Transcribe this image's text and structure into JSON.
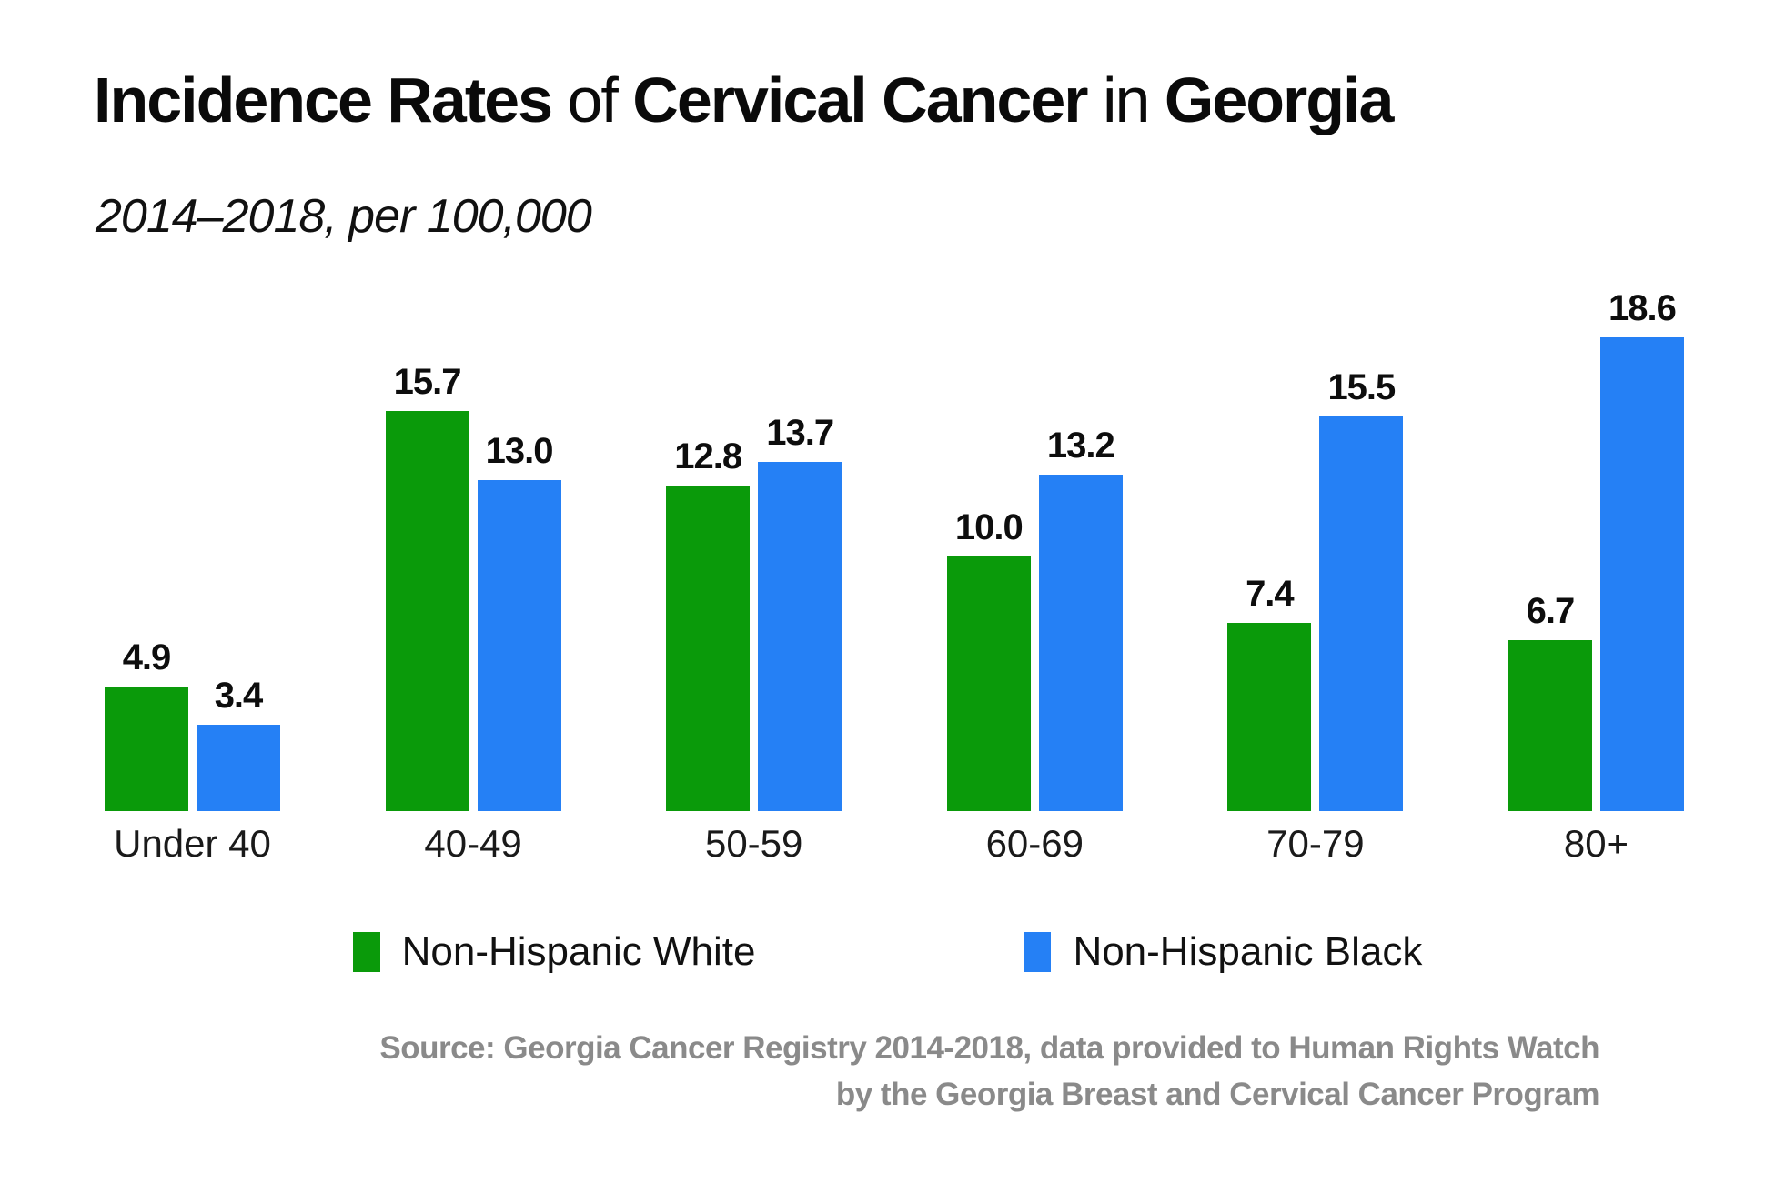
{
  "header": {
    "title_parts": [
      {
        "text": "Incidence Rates ",
        "bold": true
      },
      {
        "text": "of ",
        "bold": false
      },
      {
        "text": "Cervical Cancer ",
        "bold": true
      },
      {
        "text": "in ",
        "bold": false
      },
      {
        "text": "Georgia",
        "bold": true
      }
    ],
    "subtitle": "2014–2018, per 100,000"
  },
  "chart_data": {
    "type": "bar",
    "title": "Incidence Rates of Cervical Cancer in Georgia",
    "subtitle": "2014–2018, per 100,000",
    "categories": [
      "Under 40",
      "40-49",
      "50-59",
      "60-69",
      "70-79",
      "80+"
    ],
    "series": [
      {
        "name": "Non-Hispanic White",
        "color": "#0a9a0a",
        "values": [
          4.9,
          15.7,
          12.8,
          10.0,
          7.4,
          6.7
        ],
        "labels": [
          "4.9",
          "15.7",
          "12.8",
          "10.0",
          "7.4",
          "6.7"
        ]
      },
      {
        "name": "Non-Hispanic Black",
        "color": "#2580f5",
        "values": [
          3.4,
          13.0,
          13.7,
          13.2,
          15.5,
          18.6
        ],
        "labels": [
          "3.4",
          "13.0",
          "13.7",
          "13.2",
          "15.5",
          "18.6"
        ]
      }
    ],
    "xlabel": "",
    "ylabel": "",
    "ylim": [
      0,
      20
    ],
    "grid": false,
    "value_labels": true,
    "legend_position": "bottom"
  },
  "legend": {
    "items": [
      {
        "label": "Non-Hispanic White",
        "color": "#0a9a0a"
      },
      {
        "label": "Non-Hispanic Black",
        "color": "#2580f5"
      }
    ]
  },
  "source": {
    "line1": "Source: Georgia Cancer Registry 2014-2018, data provided to Human Rights Watch",
    "line2": "by the Georgia Breast and Cervical Cancer Program"
  }
}
